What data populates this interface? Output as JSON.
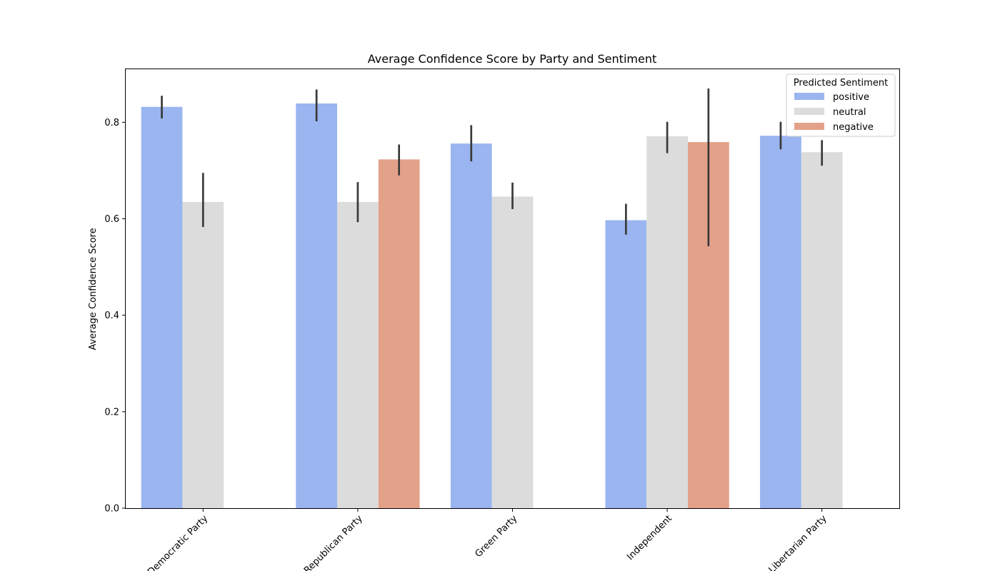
{
  "chart_data": {
    "type": "bar",
    "title": "Average Confidence Score by Party and Sentiment",
    "xlabel": "",
    "ylabel": "Average Confidence Score",
    "ylim": [
      0,
      0.91
    ],
    "yticks": [
      0.0,
      0.2,
      0.4,
      0.6,
      0.8
    ],
    "ytick_labels": [
      "0.0",
      "0.2",
      "0.4",
      "0.6",
      "0.8"
    ],
    "grid": false,
    "categories": [
      "Democratic Party",
      "Republican Party",
      "Green Party",
      "Independent",
      "Libertarian Party"
    ],
    "legend": {
      "title": "Predicted Sentiment",
      "position": "top-right"
    },
    "series": [
      {
        "name": "positive",
        "color": "#9ab5f0",
        "values": [
          0.832,
          0.839,
          0.756,
          0.597,
          0.772
        ],
        "error_low": [
          0.808,
          0.802,
          0.719,
          0.567,
          0.744
        ],
        "error_high": [
          0.855,
          0.868,
          0.794,
          0.631,
          0.801
        ]
      },
      {
        "name": "neutral",
        "color": "#dcdcdc",
        "values": [
          0.635,
          0.635,
          0.646,
          0.771,
          0.738
        ],
        "error_low": [
          0.583,
          0.593,
          0.62,
          0.736,
          0.71
        ],
        "error_high": [
          0.695,
          0.676,
          0.675,
          0.801,
          0.763
        ]
      },
      {
        "name": "negative",
        "color": "#e4a18a",
        "values": [
          null,
          0.723,
          null,
          0.759,
          null
        ],
        "error_low": [
          null,
          0.69,
          null,
          0.543,
          null
        ],
        "error_high": [
          null,
          0.754,
          null,
          0.87,
          null
        ]
      }
    ]
  }
}
